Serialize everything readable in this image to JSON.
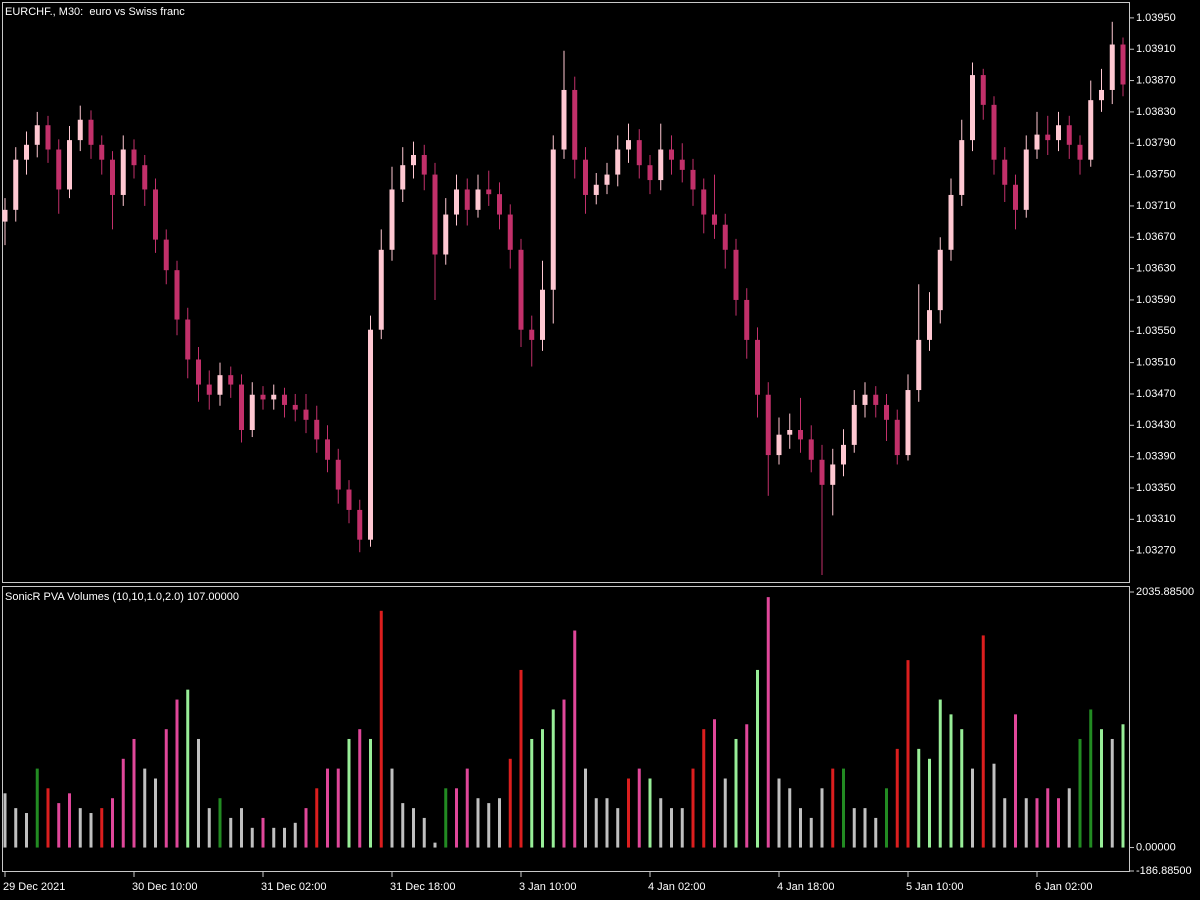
{
  "chart_data": [
    {
      "type": "candlestick",
      "title": "EURCHF., M30:  euro vs Swiss franc",
      "categories": [
        "29 Dec 2021",
        null,
        null,
        null,
        null,
        null,
        null,
        null,
        null,
        null,
        null,
        null,
        "30 Dec 10:00",
        null,
        null,
        null,
        null,
        null,
        null,
        null,
        null,
        null,
        null,
        null,
        "31 Dec 02:00",
        null,
        null,
        null,
        null,
        null,
        null,
        null,
        null,
        null,
        null,
        null,
        "31 Dec 18:00",
        null,
        null,
        null,
        null,
        null,
        null,
        null,
        null,
        null,
        null,
        null,
        "3 Jan 10:00",
        null,
        null,
        null,
        null,
        null,
        null,
        null,
        null,
        null,
        null,
        null,
        "4 Jan 02:00",
        null,
        null,
        null,
        null,
        null,
        null,
        null,
        null,
        null,
        null,
        null,
        "4 Jan 18:00",
        null,
        null,
        null,
        null,
        null,
        null,
        null,
        null,
        null,
        null,
        null,
        "5 Jan 10:00",
        null,
        null,
        null,
        null,
        null,
        null,
        null,
        null,
        null,
        null,
        null,
        "6 Jan 02:00",
        null,
        null,
        null,
        null,
        null,
        null,
        null,
        null
      ],
      "open": [
        1.0369,
        1.03705,
        1.03769,
        1.03788,
        1.03813,
        1.03782,
        1.03731,
        1.03794,
        1.0382,
        1.03788,
        1.03769,
        1.03724,
        1.03782,
        1.03762,
        1.03731,
        1.03667,
        1.03628,
        1.03565,
        1.03514,
        1.03482,
        1.03469,
        1.03494,
        1.03482,
        1.03424,
        1.03469,
        1.03463,
        1.03469,
        1.03456,
        1.0345,
        1.03437,
        1.03412,
        1.03386,
        1.03348,
        1.03322,
        1.03284,
        1.03552,
        1.03654,
        1.03731,
        1.03762,
        1.03775,
        1.0375,
        1.03648,
        1.03699,
        1.03731,
        1.03705,
        1.03731,
        1.03725,
        1.03699,
        1.03654,
        1.03552,
        1.03539,
        1.03603,
        1.03782,
        1.03858,
        1.03769,
        1.03724,
        1.03737,
        1.0375,
        1.03782,
        1.03794,
        1.03762,
        1.03743,
        1.03782,
        1.03769,
        1.03756,
        1.03731,
        1.03699,
        1.03686,
        1.03654,
        1.0359,
        1.03539,
        1.03469,
        1.03392,
        1.03418,
        1.03424,
        1.03412,
        1.03386,
        1.03354,
        1.0338,
        1.03405,
        1.03456,
        1.03469,
        1.03456,
        1.03437,
        1.03392,
        1.03475,
        1.03539,
        1.03577,
        1.03654,
        1.03724,
        1.03794,
        1.03877,
        1.03839,
        1.03769,
        1.03737,
        1.03705,
        1.03782,
        1.03801,
        1.03794,
        1.03813,
        1.03788,
        1.03769,
        1.03845,
        1.03858,
        1.03916
      ],
      "high": [
        1.0372,
        1.03785,
        1.03805,
        1.0383,
        1.03825,
        1.03795,
        1.03812,
        1.03838,
        1.03832,
        1.038,
        1.0378,
        1.038,
        1.03795,
        1.03775,
        1.03745,
        1.0368,
        1.0364,
        1.0358,
        1.0353,
        1.035,
        1.0351,
        1.03505,
        1.03495,
        1.03485,
        1.0348,
        1.03482,
        1.03478,
        1.0347,
        1.0347,
        1.03455,
        1.0343,
        1.034,
        1.0336,
        1.03335,
        1.0357,
        1.0368,
        1.0376,
        1.03785,
        1.03792,
        1.03788,
        1.03765,
        1.0372,
        1.0375,
        1.03745,
        1.0375,
        1.03755,
        1.0374,
        1.03712,
        1.03668,
        1.0357,
        1.0364,
        1.038,
        1.03908,
        1.03875,
        1.03785,
        1.03752,
        1.03765,
        1.038,
        1.03815,
        1.03808,
        1.03775,
        1.03815,
        1.038,
        1.0379,
        1.0377,
        1.03745,
        1.0375,
        1.037,
        1.03668,
        1.03605,
        1.03555,
        1.03485,
        1.0344,
        1.03445,
        1.03465,
        1.0343,
        1.03405,
        1.034,
        1.03425,
        1.03475,
        1.03485,
        1.0348,
        1.0347,
        1.0345,
        1.03495,
        1.0361,
        1.036,
        1.0367,
        1.03745,
        1.0382,
        1.03893,
        1.03885,
        1.0385,
        1.03785,
        1.0375,
        1.038,
        1.0383,
        1.03825,
        1.0383,
        1.03825,
        1.038,
        1.0387,
        1.03885,
        1.03945,
        1.03925
      ],
      "low": [
        1.0366,
        1.0369,
        1.0375,
        1.03772,
        1.03765,
        1.037,
        1.0372,
        1.0378,
        1.0377,
        1.0375,
        1.0368,
        1.0371,
        1.03745,
        1.0371,
        1.0365,
        1.0361,
        1.03545,
        1.0349,
        1.0346,
        1.0345,
        1.03455,
        1.03465,
        1.03408,
        1.03415,
        1.0345,
        1.0345,
        1.0344,
        1.03435,
        1.0342,
        1.03395,
        1.0337,
        1.0333,
        1.03305,
        1.03268,
        1.03275,
        1.0354,
        1.0364,
        1.03715,
        1.03745,
        1.0373,
        1.0359,
        1.03635,
        1.03685,
        1.03685,
        1.03695,
        1.0371,
        1.0368,
        1.0363,
        1.0353,
        1.03505,
        1.03525,
        1.0356,
        1.0377,
        1.03745,
        1.037,
        1.03712,
        1.03725,
        1.03735,
        1.03765,
        1.03745,
        1.03725,
        1.0373,
        1.0375,
        1.0374,
        1.0371,
        1.03675,
        1.03668,
        1.0363,
        1.0357,
        1.03515,
        1.0344,
        1.0334,
        1.0338,
        1.034,
        1.03395,
        1.0337,
        1.03239,
        1.03315,
        1.03365,
        1.03395,
        1.0344,
        1.0344,
        1.0341,
        1.0338,
        1.03385,
        1.0346,
        1.03525,
        1.0356,
        1.0364,
        1.0371,
        1.0378,
        1.0382,
        1.0375,
        1.03715,
        1.0368,
        1.03695,
        1.0377,
        1.03775,
        1.0378,
        1.0377,
        1.0375,
        1.0376,
        1.0383,
        1.0384,
        1.0385
      ],
      "close": [
        1.03705,
        1.03769,
        1.03788,
        1.03813,
        1.03782,
        1.03731,
        1.03794,
        1.0382,
        1.03788,
        1.03769,
        1.03724,
        1.03782,
        1.03762,
        1.03731,
        1.03667,
        1.03628,
        1.03565,
        1.03514,
        1.03482,
        1.03469,
        1.03494,
        1.03482,
        1.03424,
        1.03469,
        1.03463,
        1.03469,
        1.03456,
        1.0345,
        1.03437,
        1.03412,
        1.03386,
        1.03348,
        1.03322,
        1.03284,
        1.03552,
        1.03654,
        1.03731,
        1.03762,
        1.03775,
        1.0375,
        1.03648,
        1.03699,
        1.03731,
        1.03705,
        1.03731,
        1.03725,
        1.03699,
        1.03654,
        1.03552,
        1.03539,
        1.03603,
        1.03782,
        1.03858,
        1.03769,
        1.03724,
        1.03737,
        1.0375,
        1.03782,
        1.03794,
        1.03762,
        1.03743,
        1.03782,
        1.03769,
        1.03756,
        1.03731,
        1.03699,
        1.03686,
        1.03654,
        1.0359,
        1.03539,
        1.03469,
        1.03392,
        1.03418,
        1.03424,
        1.03412,
        1.03386,
        1.03354,
        1.0338,
        1.03405,
        1.03456,
        1.03469,
        1.03456,
        1.03437,
        1.03392,
        1.03475,
        1.03539,
        1.03577,
        1.03654,
        1.03724,
        1.03794,
        1.03877,
        1.03839,
        1.03769,
        1.03737,
        1.03705,
        1.03782,
        1.03801,
        1.03794,
        1.03813,
        1.03788,
        1.03769,
        1.03845,
        1.03858,
        1.03916,
        1.03865
      ],
      "up_color": "#ffc8d2",
      "down_color": "#c2306a",
      "ylim": [
        1.0323,
        1.03969
      ],
      "yticks": [
        {
          "value": 1.0395,
          "label": "1.03950"
        },
        {
          "value": 1.0391,
          "label": "1.03910"
        },
        {
          "value": 1.0387,
          "label": "1.03870"
        },
        {
          "value": 1.0383,
          "label": "1.03830"
        },
        {
          "value": 1.0379,
          "label": "1.03790"
        },
        {
          "value": 1.0375,
          "label": "1.03750"
        },
        {
          "value": 1.0371,
          "label": "1.03710"
        },
        {
          "value": 1.0367,
          "label": "1.03670"
        },
        {
          "value": 1.0363,
          "label": "1.03630"
        },
        {
          "value": 1.0359,
          "label": "1.03590"
        },
        {
          "value": 1.0355,
          "label": "1.03550"
        },
        {
          "value": 1.0351,
          "label": "1.03510"
        },
        {
          "value": 1.0347,
          "label": "1.03470"
        },
        {
          "value": 1.0343,
          "label": "1.03430"
        },
        {
          "value": 1.0339,
          "label": "1.03390"
        },
        {
          "value": 1.0335,
          "label": "1.03350"
        },
        {
          "value": 1.0331,
          "label": "1.03310"
        },
        {
          "value": 1.0327,
          "label": "1.03270"
        }
      ]
    },
    {
      "type": "bar",
      "title": "SonicR PVA Volumes (10,10,1.0,2.0) 107.00000",
      "values": [
        432,
        314,
        275,
        629,
        472,
        354,
        432,
        314,
        275,
        314,
        393,
        707,
        865,
        629,
        550,
        943,
        1179,
        1258,
        865,
        314,
        393,
        236,
        314,
        157,
        236,
        157,
        157,
        197,
        314,
        472,
        629,
        629,
        865,
        943,
        865,
        1886,
        629,
        354,
        314,
        236,
        39,
        472,
        472,
        629,
        393,
        354,
        393,
        707,
        1415,
        865,
        943,
        1100,
        1179,
        1729,
        629,
        393,
        393,
        314,
        550,
        629,
        550,
        393,
        314,
        314,
        629,
        943,
        1022,
        550,
        865,
        982,
        1415,
        1995,
        550,
        472,
        314,
        236,
        472,
        629,
        629,
        314,
        314,
        236,
        472,
        786,
        1493,
        786,
        707,
        1179,
        1061,
        943,
        629,
        1690,
        668,
        393,
        1061,
        393,
        393,
        472,
        393,
        472,
        865,
        1100,
        943,
        865,
        982
      ],
      "bar_colors": [
        "#c0c0c0",
        "#c0c0c0",
        "#c0c0c0",
        "#228b22",
        "#dc1e1e",
        "#e0479a",
        "#e0479a",
        "#c0c0c0",
        "#c0c0c0",
        "#dc1e1e",
        "#e0479a",
        "#e0479a",
        "#e0479a",
        "#c0c0c0",
        "#c0c0c0",
        "#e0479a",
        "#e0479a",
        "#98ee98",
        "#c0c0c0",
        "#c0c0c0",
        "#228b22",
        "#c0c0c0",
        "#c0c0c0",
        "#c0c0c0",
        "#e0479a",
        "#c0c0c0",
        "#c0c0c0",
        "#c0c0c0",
        "#e0479a",
        "#dc1e1e",
        "#e0479a",
        "#e0479a",
        "#98ee98",
        "#e0479a",
        "#98ee98",
        "#dc1e1e",
        "#c0c0c0",
        "#c0c0c0",
        "#c0c0c0",
        "#c0c0c0",
        "#c0c0c0",
        "#228b22",
        "#e0479a",
        "#e0479a",
        "#c0c0c0",
        "#c0c0c0",
        "#c0c0c0",
        "#dc1e1e",
        "#dc1e1e",
        "#98ee98",
        "#98ee98",
        "#98ee98",
        "#e0479a",
        "#e0479a",
        "#c0c0c0",
        "#c0c0c0",
        "#c0c0c0",
        "#c0c0c0",
        "#dc1e1e",
        "#e0479a",
        "#98ee98",
        "#c0c0c0",
        "#c0c0c0",
        "#c0c0c0",
        "#dc1e1e",
        "#dc1e1e",
        "#e0479a",
        "#c0c0c0",
        "#98ee98",
        "#e0479a",
        "#98ee98",
        "#e0479a",
        "#c0c0c0",
        "#c0c0c0",
        "#c0c0c0",
        "#c0c0c0",
        "#c0c0c0",
        "#dc1e1e",
        "#228b22",
        "#c0c0c0",
        "#c0c0c0",
        "#c0c0c0",
        "#228b22",
        "#dc1e1e",
        "#dc1e1e",
        "#98ee98",
        "#98ee98",
        "#98ee98",
        "#98ee98",
        "#98ee98",
        "#c0c0c0",
        "#dc1e1e",
        "#c0c0c0",
        "#c0c0c0",
        "#e0479a",
        "#c0c0c0",
        "#e0479a",
        "#e0479a",
        "#e0479a",
        "#c0c0c0",
        "#228b22",
        "#228b22",
        "#98ee98",
        "#c0c0c0",
        "#98ee98"
      ],
      "ylim": [
        -186.885,
        2035.885
      ],
      "yticks": [
        {
          "value": 2035.885,
          "label": "2035.88500"
        },
        {
          "value": 0,
          "label": "0.00000"
        },
        {
          "value": -186.885,
          "label": "-186.88500"
        }
      ]
    }
  ]
}
